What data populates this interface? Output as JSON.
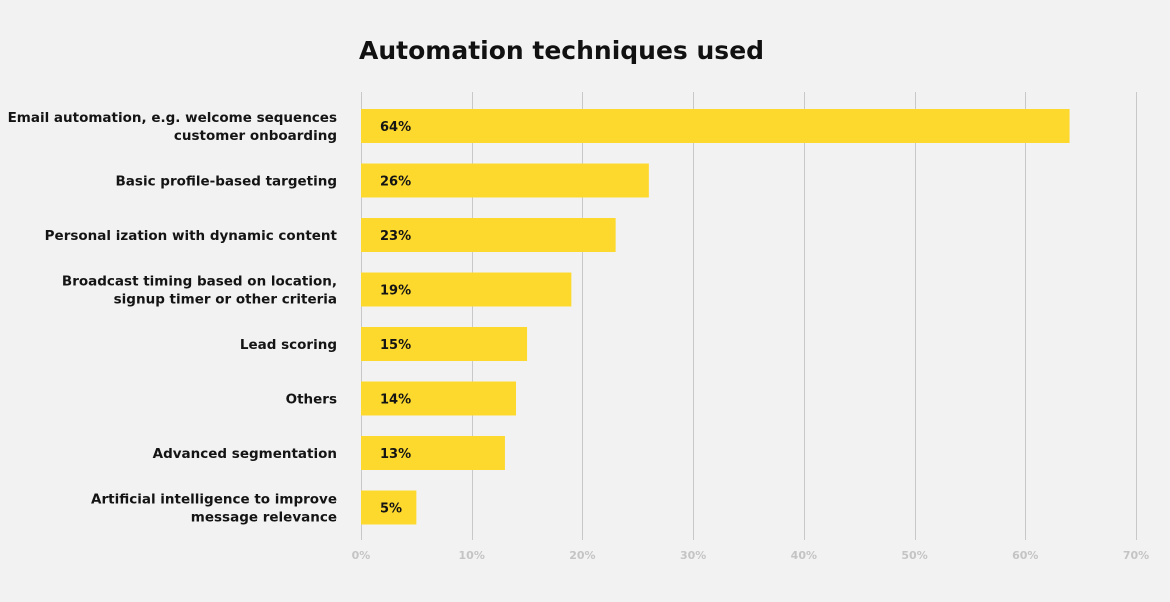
{
  "chart_data": {
    "type": "bar",
    "orientation": "horizontal",
    "title": "Automation techniques used",
    "categories": [
      [
        "Email automation, e.g. welcome sequences",
        "customer onboarding"
      ],
      [
        "Basic profile-based targeting"
      ],
      [
        "Personal ization with dynamic content"
      ],
      [
        "Broadcast timing based on location,",
        "signup timer or other criteria"
      ],
      [
        "Lead  scoring"
      ],
      [
        "Others"
      ],
      [
        "Advanced segmentation"
      ],
      [
        "Artificial intelligence to improve",
        "message relevance"
      ]
    ],
    "values": [
      64,
      26,
      23,
      19,
      15,
      14,
      13,
      5
    ],
    "data_labels": [
      "64%",
      "26%",
      "23%",
      "19%",
      "15%",
      "14%",
      "13%",
      "5%"
    ],
    "xlim": [
      0,
      70
    ],
    "x_ticks": [
      0,
      10,
      20,
      30,
      40,
      50,
      60,
      70
    ],
    "x_tick_labels": [
      "0%",
      "10%",
      "20%",
      "30%",
      "40%",
      "50%",
      "60%",
      "70%"
    ],
    "grid": "vertical",
    "colors": {
      "bar": "#fdd92e",
      "grid": "#c8c8c8",
      "tick_text": "#c4c4c4",
      "text": "#141414",
      "background": "#f2f2f2"
    }
  }
}
